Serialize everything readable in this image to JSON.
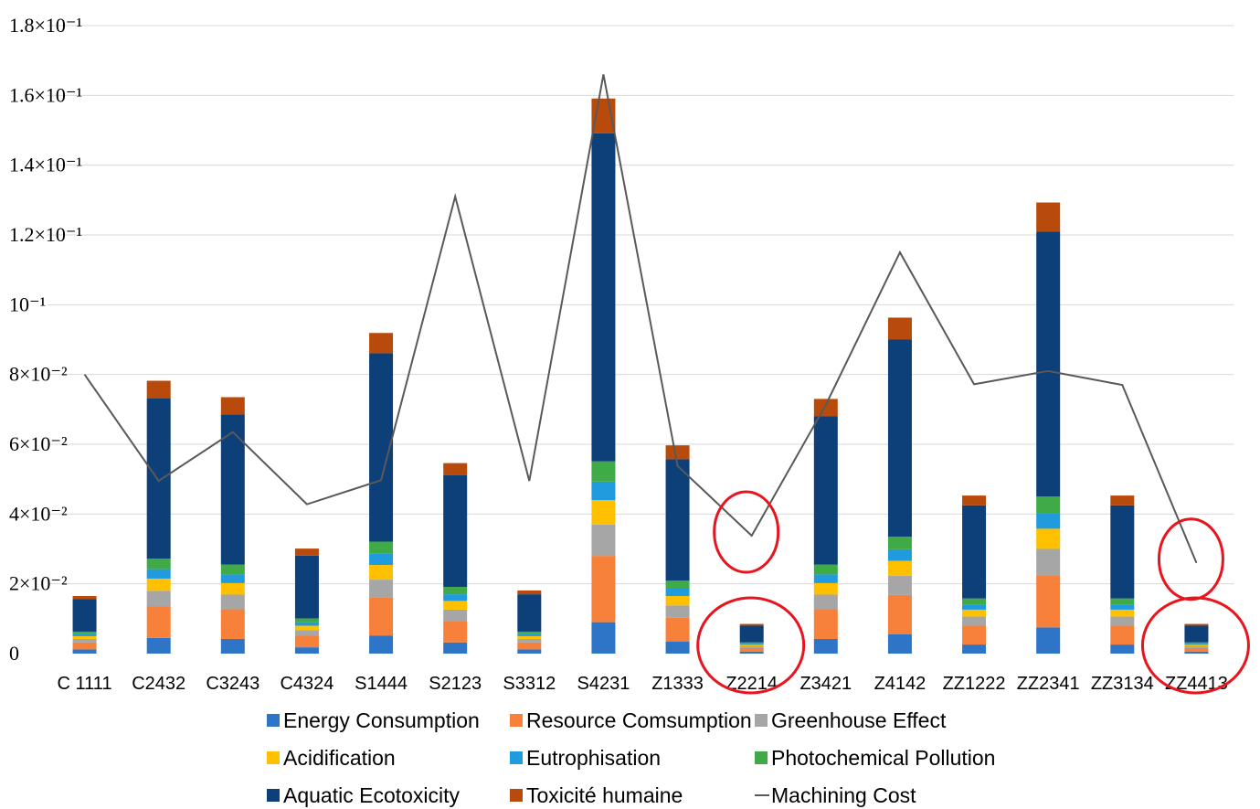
{
  "chart_data": {
    "type": "bar",
    "stacked": true,
    "categories": [
      "C 1111",
      "C2432",
      "C3243",
      "C4324",
      "S1444",
      "S2123",
      "S3312",
      "S4231",
      "Z1333",
      "Z2214",
      "Z3421",
      "Z4142",
      "ZZ1222",
      "ZZ2341",
      "ZZ3134",
      "ZZ4413"
    ],
    "yticks": [
      {
        "value": 0,
        "label": "0"
      },
      {
        "value": 0.02,
        "label": "2×10⁻²"
      },
      {
        "value": 0.04,
        "label": "4×10⁻²"
      },
      {
        "value": 0.06,
        "label": "6×10⁻²"
      },
      {
        "value": 0.08,
        "label": "8×10⁻²"
      },
      {
        "value": 0.1,
        "label": "10⁻¹"
      },
      {
        "value": 0.12,
        "label": "1.2×10⁻¹"
      },
      {
        "value": 0.14,
        "label": "1.4×10⁻¹"
      },
      {
        "value": 0.16,
        "label": "1.6×10⁻¹"
      },
      {
        "value": 0.18,
        "label": "1.8×10⁻¹"
      }
    ],
    "ylim": [
      0,
      0.18
    ],
    "grid": true,
    "legend_position": "bottom",
    "series": [
      {
        "name": "Energy Consumption",
        "color": "#2E75C8",
        "values": [
          0.0012,
          0.0045,
          0.0042,
          0.0018,
          0.0052,
          0.0032,
          0.0012,
          0.009,
          0.0035,
          0.0006,
          0.0042,
          0.0055,
          0.0026,
          0.0075,
          0.0026,
          0.0006
        ]
      },
      {
        "name": "Resource Comsumption",
        "color": "#F7813A",
        "values": [
          0.002,
          0.009,
          0.0085,
          0.0033,
          0.0108,
          0.0062,
          0.002,
          0.019,
          0.0068,
          0.001,
          0.0085,
          0.0113,
          0.0054,
          0.015,
          0.0054,
          0.001
        ]
      },
      {
        "name": "Greenhouse Effect",
        "color": "#A6A6A6",
        "values": [
          0.001,
          0.0045,
          0.0042,
          0.0016,
          0.0052,
          0.0032,
          0.001,
          0.009,
          0.0035,
          0.0005,
          0.0042,
          0.0055,
          0.0026,
          0.0075,
          0.0026,
          0.0005
        ]
      },
      {
        "name": "Acidification",
        "color": "#FFC000",
        "values": [
          0.0008,
          0.0035,
          0.0033,
          0.0013,
          0.0042,
          0.0025,
          0.0008,
          0.007,
          0.0027,
          0.0004,
          0.0033,
          0.0043,
          0.002,
          0.0058,
          0.002,
          0.0004
        ]
      },
      {
        "name": "Eutrophisation",
        "color": "#1F9BDE",
        "values": [
          0.0006,
          0.0027,
          0.0025,
          0.001,
          0.0032,
          0.0019,
          0.0006,
          0.0053,
          0.0021,
          0.0003,
          0.0025,
          0.0033,
          0.0015,
          0.0044,
          0.0015,
          0.0003
        ]
      },
      {
        "name": "Photochemical Pollution",
        "color": "#3FAA46",
        "values": [
          0.0007,
          0.003,
          0.0028,
          0.0011,
          0.0035,
          0.0021,
          0.0007,
          0.0058,
          0.0023,
          0.0004,
          0.0028,
          0.0036,
          0.0017,
          0.0048,
          0.0017,
          0.0004
        ]
      },
      {
        "name": "Aquatic Ecotoxicity",
        "color": "#0D3F78",
        "values": [
          0.0093,
          0.046,
          0.043,
          0.018,
          0.054,
          0.032,
          0.0107,
          0.094,
          0.0348,
          0.0048,
          0.0425,
          0.0565,
          0.0267,
          0.076,
          0.0267,
          0.0048
        ]
      },
      {
        "name": "Toxicité humaine",
        "color": "#B84A0C",
        "values": [
          0.0009,
          0.005,
          0.005,
          0.002,
          0.0058,
          0.0035,
          0.0011,
          0.01,
          0.004,
          0.0005,
          0.005,
          0.0063,
          0.0028,
          0.0083,
          0.0028,
          0.0005
        ]
      }
    ],
    "line_series": {
      "name": "Machining Cost",
      "color": "#595959",
      "values": [
        0.08,
        0.0495,
        0.0635,
        0.0428,
        0.0497,
        0.131,
        0.0495,
        0.166,
        0.0538,
        0.0338,
        0.0713,
        0.115,
        0.0772,
        0.081,
        0.077,
        0.026
      ]
    },
    "annotations": [
      {
        "type": "red-ellipse",
        "category": "Z2214",
        "target": "line"
      },
      {
        "type": "red-ellipse",
        "category": "Z2214",
        "target": "bar"
      },
      {
        "type": "red-ellipse",
        "category": "ZZ4413",
        "target": "line"
      },
      {
        "type": "red-ellipse",
        "category": "ZZ4413",
        "target": "bar"
      }
    ],
    "annotation_color": "#E8141E"
  }
}
